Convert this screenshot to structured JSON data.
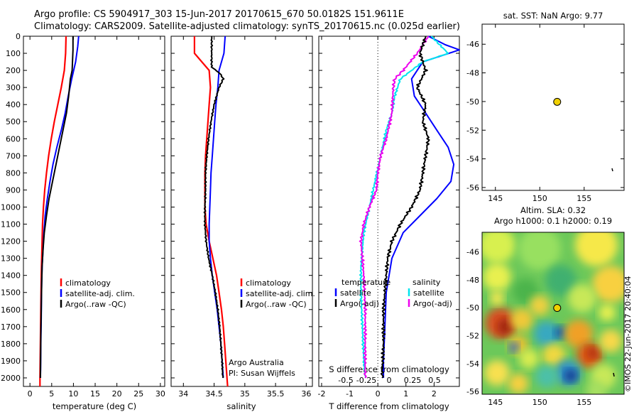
{
  "header": {
    "line1": "Argo profile: CS 5904917_303 15-Jun-2017 20170615_670 50.0182S 151.9611E",
    "line2": "Climatology: CARS2009. Satellite-adjusted climatology: synTS_20170615.nc (0.025d earlier)"
  },
  "colors": {
    "climatology": "#ff0000",
    "satellite": "#0000ff",
    "argo": "#000000",
    "sat_salinity": "#00e5ee",
    "argo_salinity": "#ee00ee",
    "dot": "#f0d000"
  },
  "panel_temp": {
    "xlabel": "temperature (deg C)",
    "xticks": [
      "0",
      "5",
      "10",
      "15",
      "20",
      "25",
      "30"
    ],
    "yticks": [
      "0",
      "100",
      "200",
      "300",
      "400",
      "500",
      "600",
      "700",
      "800",
      "900",
      "1000",
      "1100",
      "1200",
      "1300",
      "1400",
      "1500",
      "1600",
      "1700",
      "1800",
      "1900",
      "2000"
    ],
    "legend": [
      "climatology",
      "satellite-adj. clim.",
      "Argo(..raw -QC)"
    ]
  },
  "panel_sal": {
    "xlabel": "salinity",
    "xticks": [
      "34",
      "34.5",
      "35",
      "35.5",
      "36"
    ],
    "legend": [
      "climatology",
      "satellite-adj. clim.",
      "Argo(..raw -QC)"
    ],
    "credit1": "Argo Australia",
    "credit2": "PI: Susan Wijffels"
  },
  "panel_diff": {
    "xlabel": "T difference from climatology",
    "xticks": [
      "-2",
      "-1",
      "0",
      "1",
      "2"
    ],
    "top_label": "S difference from climatology",
    "top_ticks": [
      "-0.5",
      "-0.25",
      "0",
      "0.25",
      "0.5"
    ],
    "legend_head_t": "temperature",
    "legend_head_s": "salinity",
    "legend": [
      "satellite",
      "Argo(-adj)",
      "satellite",
      "Argo(-adj)"
    ]
  },
  "map_sst": {
    "title": "sat. SST: NaN Argo: 9.77",
    "xticks": [
      "145",
      "150",
      "155"
    ],
    "yticks": [
      "-46",
      "-48",
      "-50",
      "-52",
      "-54",
      "-56"
    ]
  },
  "map_sla": {
    "title1": "Altim. SLA: 0.32",
    "title2": "Argo h1000: 0.1 h2000: 0.19",
    "xticks": [
      "145",
      "150",
      "155"
    ],
    "yticks": [
      "-46",
      "-48",
      "-50",
      "-52",
      "-54",
      "-56"
    ]
  },
  "stamp": "©IMOS 22-Jun-2017 20:40:04",
  "chart_data": [
    {
      "type": "line",
      "name": "temperature",
      "xlabel": "temperature (deg C)",
      "xlim": [
        -1.5,
        31
      ],
      "ylim": [
        0,
        2050
      ],
      "series": [
        {
          "name": "climatology",
          "points": [
            [
              8.3,
              0
            ],
            [
              8.2,
              100
            ],
            [
              7.9,
              200
            ],
            [
              7.2,
              300
            ],
            [
              6.4,
              400
            ],
            [
              5.6,
              500
            ],
            [
              4.9,
              600
            ],
            [
              4.3,
              700
            ],
            [
              3.8,
              800
            ],
            [
              3.4,
              900
            ],
            [
              3.1,
              1000
            ],
            [
              2.9,
              1100
            ],
            [
              2.8,
              1200
            ],
            [
              2.7,
              1300
            ],
            [
              2.6,
              1400
            ],
            [
              2.55,
              1500
            ],
            [
              2.5,
              1600
            ],
            [
              2.45,
              1700
            ],
            [
              2.4,
              1800
            ],
            [
              2.35,
              1900
            ],
            [
              2.3,
              2000
            ],
            [
              2.3,
              2050
            ]
          ]
        },
        {
          "name": "satellite-adj. clim.",
          "points": [
            [
              11.2,
              0
            ],
            [
              11.0,
              60
            ],
            [
              10.5,
              150
            ],
            [
              9.6,
              250
            ],
            [
              8.8,
              350
            ],
            [
              8.1,
              450
            ],
            [
              7.2,
              550
            ],
            [
              6.2,
              650
            ],
            [
              5.3,
              750
            ],
            [
              4.6,
              850
            ],
            [
              4.0,
              950
            ],
            [
              3.5,
              1050
            ],
            [
              3.2,
              1150
            ],
            [
              3.0,
              1250
            ],
            [
              2.8,
              1350
            ],
            [
              2.65,
              1500
            ],
            [
              2.6,
              1650
            ],
            [
              2.5,
              1800
            ],
            [
              2.45,
              1950
            ],
            [
              2.4,
              2000
            ]
          ]
        },
        {
          "name": "Argo(..raw -QC)",
          "points": [
            [
              9.9,
              0
            ],
            [
              9.9,
              80
            ],
            [
              9.7,
              200
            ],
            [
              9.3,
              250
            ],
            [
              8.9,
              350
            ],
            [
              8.4,
              450
            ],
            [
              7.6,
              550
            ],
            [
              6.8,
              650
            ],
            [
              6.0,
              750
            ],
            [
              5.2,
              850
            ],
            [
              4.4,
              950
            ],
            [
              3.8,
              1050
            ],
            [
              3.3,
              1150
            ],
            [
              3.0,
              1250
            ],
            [
              2.8,
              1350
            ],
            [
              2.7,
              1450
            ],
            [
              2.6,
              1600
            ],
            [
              2.5,
              1750
            ],
            [
              2.45,
              1900
            ],
            [
              2.4,
              2000
            ]
          ]
        }
      ]
    },
    {
      "type": "line",
      "name": "salinity",
      "xlabel": "salinity",
      "xlim": [
        33.8,
        36.1
      ],
      "ylim": [
        0,
        2050
      ],
      "series": [
        {
          "name": "climatology",
          "points": [
            [
              34.18,
              0
            ],
            [
              34.18,
              100
            ],
            [
              34.3,
              150
            ],
            [
              34.42,
              200
            ],
            [
              34.44,
              300
            ],
            [
              34.42,
              400
            ],
            [
              34.4,
              500
            ],
            [
              34.38,
              600
            ],
            [
              34.36,
              700
            ],
            [
              34.35,
              800
            ],
            [
              34.35,
              900
            ],
            [
              34.35,
              1000
            ],
            [
              34.37,
              1100
            ],
            [
              34.42,
              1200
            ],
            [
              34.48,
              1300
            ],
            [
              34.54,
              1400
            ],
            [
              34.58,
              1500
            ],
            [
              34.62,
              1600
            ],
            [
              34.65,
              1700
            ],
            [
              34.67,
              1800
            ],
            [
              34.69,
              1900
            ],
            [
              34.71,
              2000
            ],
            [
              34.72,
              2050
            ]
          ]
        },
        {
          "name": "satellite-adj. clim.",
          "points": [
            [
              34.68,
              0
            ],
            [
              34.66,
              100
            ],
            [
              34.58,
              200
            ],
            [
              34.56,
              300
            ],
            [
              34.53,
              400
            ],
            [
              34.51,
              500
            ],
            [
              34.49,
              600
            ],
            [
              34.47,
              700
            ],
            [
              34.45,
              800
            ],
            [
              34.44,
              900
            ],
            [
              34.43,
              1000
            ],
            [
              34.42,
              1100
            ],
            [
              34.42,
              1200
            ],
            [
              34.44,
              1300
            ],
            [
              34.47,
              1400
            ],
            [
              34.51,
              1500
            ],
            [
              34.55,
              1600
            ],
            [
              34.58,
              1700
            ],
            [
              34.61,
              1800
            ],
            [
              34.63,
              1900
            ],
            [
              34.65,
              2000
            ]
          ]
        },
        {
          "name": "Argo(..raw -QC)",
          "points": [
            [
              34.46,
              0
            ],
            [
              34.46,
              180
            ],
            [
              34.6,
              220
            ],
            [
              34.65,
              250
            ],
            [
              34.58,
              300
            ],
            [
              34.5,
              400
            ],
            [
              34.45,
              500
            ],
            [
              34.41,
              600
            ],
            [
              34.38,
              700
            ],
            [
              34.36,
              800
            ],
            [
              34.36,
              900
            ],
            [
              34.35,
              1000
            ],
            [
              34.35,
              1100
            ],
            [
              34.37,
              1200
            ],
            [
              34.41,
              1300
            ],
            [
              34.47,
              1400
            ],
            [
              34.52,
              1500
            ],
            [
              34.56,
              1600
            ],
            [
              34.59,
              1700
            ],
            [
              34.61,
              1800
            ],
            [
              34.63,
              1900
            ],
            [
              34.64,
              2000
            ]
          ]
        }
      ]
    },
    {
      "type": "line",
      "name": "differences",
      "xlabel": "T difference from climatology",
      "xlim": [
        -2.1,
        2.9
      ],
      "ylim": [
        0,
        2050
      ],
      "series": [
        {
          "name": "temperature satellite",
          "points": [
            [
              1.8,
              0
            ],
            [
              2.4,
              50
            ],
            [
              2.9,
              80
            ],
            [
              1.6,
              150
            ],
            [
              1.2,
              250
            ],
            [
              1.3,
              350
            ],
            [
              1.7,
              450
            ],
            [
              2.1,
              550
            ],
            [
              2.5,
              650
            ],
            [
              2.7,
              750
            ],
            [
              2.6,
              850
            ],
            [
              2.1,
              950
            ],
            [
              1.5,
              1050
            ],
            [
              0.9,
              1150
            ],
            [
              0.5,
              1300
            ],
            [
              0.3,
              1500
            ],
            [
              0.25,
              1700
            ],
            [
              0.2,
              1900
            ],
            [
              0.2,
              2000
            ]
          ]
        },
        {
          "name": "temperature Argo(-adj)",
          "points": [
            [
              1.7,
              0
            ],
            [
              1.5,
              100
            ],
            [
              1.7,
              200
            ],
            [
              1.4,
              300
            ],
            [
              1.7,
              400
            ],
            [
              1.6,
              500
            ],
            [
              1.8,
              600
            ],
            [
              1.7,
              700
            ],
            [
              1.6,
              800
            ],
            [
              1.5,
              900
            ],
            [
              1.2,
              1000
            ],
            [
              0.8,
              1100
            ],
            [
              0.5,
              1200
            ],
            [
              0.35,
              1300
            ],
            [
              0.3,
              1400
            ],
            [
              0.2,
              1600
            ],
            [
              0.2,
              1800
            ],
            [
              0.15,
              2000
            ]
          ]
        },
        {
          "name": "salinity satellite",
          "points": [
            [
              1.9,
              0
            ],
            [
              2.5,
              100
            ],
            [
              1.6,
              150
            ],
            [
              0.8,
              250
            ],
            [
              0.6,
              350
            ],
            [
              0.5,
              450
            ],
            [
              0.3,
              550
            ],
            [
              0.1,
              700
            ],
            [
              -0.1,
              850
            ],
            [
              -0.3,
              1000
            ],
            [
              -0.5,
              1150
            ],
            [
              -0.6,
              1350
            ],
            [
              -0.6,
              1500
            ],
            [
              -0.55,
              1700
            ],
            [
              -0.5,
              1900
            ],
            [
              -0.45,
              2000
            ]
          ]
        },
        {
          "name": "salinity Argo(-adj)",
          "points": [
            [
              1.8,
              0
            ],
            [
              1.4,
              100
            ],
            [
              0.9,
              200
            ],
            [
              0.6,
              250
            ],
            [
              0.55,
              300
            ],
            [
              0.5,
              450
            ],
            [
              0.3,
              600
            ],
            [
              0.1,
              700
            ],
            [
              0.0,
              800
            ],
            [
              -0.05,
              900
            ],
            [
              -0.3,
              1000
            ],
            [
              -0.5,
              1100
            ],
            [
              -0.6,
              1200
            ],
            [
              -0.5,
              1400
            ],
            [
              -0.45,
              1600
            ],
            [
              -0.45,
              1800
            ],
            [
              -0.45,
              2000
            ]
          ]
        }
      ]
    },
    {
      "type": "scatter",
      "name": "sst-map",
      "xlim": [
        143.5,
        159.5
      ],
      "ylim": [
        -56.2,
        -44.6
      ],
      "points": [
        {
          "lon": 151.96,
          "lat": -50.02
        }
      ]
    }
  ]
}
